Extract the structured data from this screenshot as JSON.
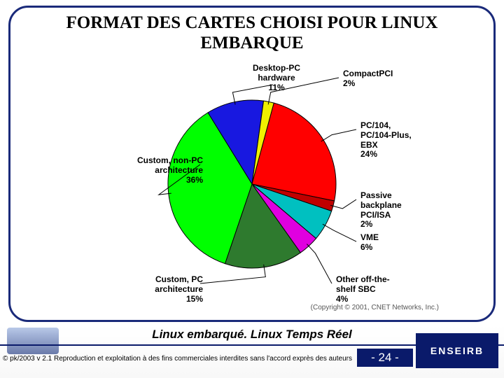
{
  "title_line1": "FORMAT DES CARTES CHOISI POUR LINUX",
  "title_line2": "EMBARQUE",
  "chart": {
    "type": "pie",
    "background_color": "#ffffff",
    "slice_border_color": "#000000",
    "slice_border_width": 1,
    "label_fontsize": 12,
    "label_fontweight": "bold",
    "label_color": "#000000",
    "slices": [
      {
        "label_line1": "Desktop-PC",
        "label_line2": "hardware",
        "value": 11,
        "color": "#1818e0"
      },
      {
        "label_line1": "CompactPCI",
        "label_line2": "",
        "value": 2,
        "color": "#f0f000"
      },
      {
        "label_line1": "PC/104,",
        "label_line2": "PC/104-Plus,",
        "label_line3": "EBX",
        "value": 24,
        "color": "#ff0000"
      },
      {
        "label_line1": "Passive",
        "label_line2": "backplane",
        "label_line3": "PCI/ISA",
        "value": 2,
        "color": "#c00000"
      },
      {
        "label_line1": "VME",
        "label_line2": "",
        "value": 6,
        "color": "#00c0c0"
      },
      {
        "label_line1": "Other off-the-",
        "label_line2": "shelf SBC",
        "value": 4,
        "color": "#e000e0"
      },
      {
        "label_line1": "Custom, PC",
        "label_line2": "architecture",
        "value": 15,
        "color": "#2e7a2e"
      },
      {
        "label_line1": "Custom, non-PC",
        "label_line2": "architecture",
        "value": 36,
        "color": "#00ff00"
      }
    ],
    "copyright": "(Copyright © 2001, CNET Networks, Inc.)"
  },
  "footer": {
    "subtitle": "Linux embarqué. Linux Temps Réel",
    "legal": "© pk/2003 v 2.1  Reproduction et exploitation à des fins commerciales interdites sans l'accord exprès des auteurs",
    "page": "- 24 -",
    "right_logo_text": "ENSEIRB"
  }
}
